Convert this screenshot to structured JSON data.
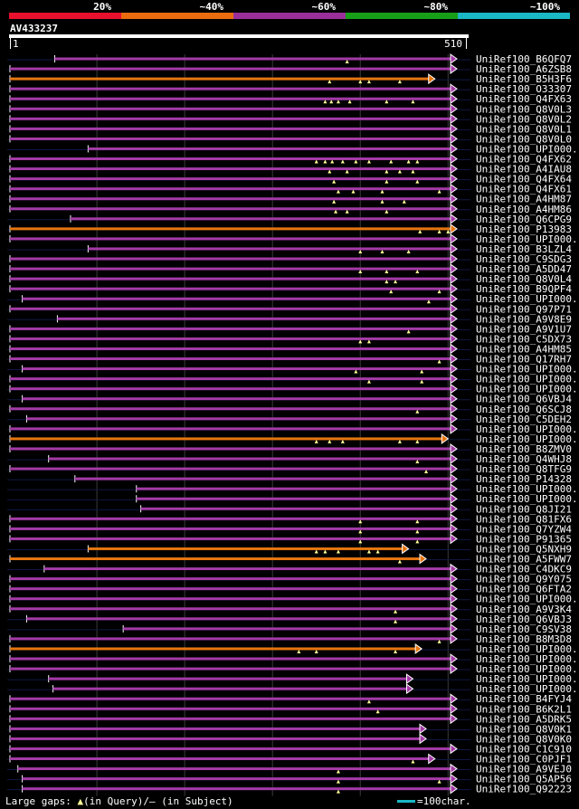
{
  "chart_data": {
    "type": "alignment-overview",
    "query_id": "AV433237",
    "query_range": [
      1,
      510
    ],
    "score_scale": {
      "labels": [
        "20%",
        "~40%",
        "~60%",
        "~80%",
        "~100%"
      ],
      "colors": [
        "#e8112d",
        "#ea6c0f",
        "#9a2f9a",
        "#17a017",
        "#1ab7c4"
      ]
    },
    "hit_colors": {
      "magenta": "#a33aa6",
      "orange": "#e5750f",
      "mark": "#ffff99"
    },
    "footer": {
      "gaps_label": "Large gaps: ",
      "gaps_query": "(in Query)",
      "gaps_subject": "/– (in Subject)",
      "scale_label": "=100char."
    },
    "hits": [
      {
        "name": "UniRef100_B6QFQ7",
        "color": "magenta",
        "start": 52,
        "end": 510,
        "gaps": [
          385
        ]
      },
      {
        "name": "UniRef100_A6ZSB8",
        "color": "magenta",
        "start": 1,
        "end": 510,
        "gaps": []
      },
      {
        "name": "UniRef100_B5H3F6",
        "color": "orange",
        "start": 1,
        "end": 485,
        "gaps": [
          365,
          400,
          410,
          445
        ]
      },
      {
        "name": "UniRef100_O33307",
        "color": "magenta",
        "start": 1,
        "end": 510,
        "gaps": []
      },
      {
        "name": "UniRef100_Q4FX63",
        "color": "magenta",
        "start": 1,
        "end": 510,
        "gaps": [
          360,
          367,
          375,
          388,
          430,
          460
        ]
      },
      {
        "name": "UniRef100_Q8V0L3",
        "color": "magenta",
        "start": 1,
        "end": 510,
        "gaps": []
      },
      {
        "name": "UniRef100_Q8V0L2",
        "color": "magenta",
        "start": 1,
        "end": 510,
        "gaps": []
      },
      {
        "name": "UniRef100_Q8V0L1",
        "color": "magenta",
        "start": 1,
        "end": 510,
        "gaps": []
      },
      {
        "name": "UniRef100_Q8V0L0",
        "color": "magenta",
        "start": 1,
        "end": 510,
        "gaps": []
      },
      {
        "name": "UniRef100_UPI000..",
        "color": "magenta",
        "start": 90,
        "end": 510,
        "gaps": []
      },
      {
        "name": "UniRef100_Q4FX62",
        "color": "magenta",
        "start": 1,
        "end": 510,
        "gaps": [
          350,
          360,
          368,
          380,
          395,
          410,
          435,
          455,
          465
        ]
      },
      {
        "name": "UniRef100_A4IAU8",
        "color": "magenta",
        "start": 1,
        "end": 510,
        "gaps": [
          365,
          385,
          430,
          445,
          460
        ]
      },
      {
        "name": "UniRef100_Q4FX64",
        "color": "magenta",
        "start": 1,
        "end": 510,
        "gaps": [
          370,
          430,
          465
        ]
      },
      {
        "name": "UniRef100_Q4FX61",
        "color": "magenta",
        "start": 1,
        "end": 510,
        "gaps": [
          375,
          392,
          425,
          490
        ]
      },
      {
        "name": "UniRef100_A4HM87",
        "color": "magenta",
        "start": 1,
        "end": 510,
        "gaps": [
          370,
          425,
          450
        ]
      },
      {
        "name": "UniRef100_A4HM86",
        "color": "magenta",
        "start": 1,
        "end": 510,
        "gaps": [
          372,
          385,
          430
        ]
      },
      {
        "name": "UniRef100_Q6CPG9",
        "color": "magenta",
        "start": 70,
        "end": 510,
        "gaps": []
      },
      {
        "name": "UniRef100_P13983",
        "color": "orange",
        "start": 1,
        "end": 510,
        "gaps": [
          468,
          490,
          500
        ]
      },
      {
        "name": "UniRef100_UPI000..",
        "color": "magenta",
        "start": 1,
        "end": 510,
        "gaps": []
      },
      {
        "name": "UniRef100_B3LZL4",
        "color": "magenta",
        "start": 90,
        "end": 510,
        "gaps": [
          400,
          425,
          455
        ]
      },
      {
        "name": "UniRef100_C9SDG3",
        "color": "magenta",
        "start": 1,
        "end": 510,
        "gaps": []
      },
      {
        "name": "UniRef100_A5DD47",
        "color": "magenta",
        "start": 1,
        "end": 510,
        "gaps": [
          400,
          430,
          465
        ]
      },
      {
        "name": "UniRef100_Q8V0L4",
        "color": "magenta",
        "start": 1,
        "end": 510,
        "gaps": [
          430,
          440
        ]
      },
      {
        "name": "UniRef100_B9QPF4",
        "color": "magenta",
        "start": 1,
        "end": 510,
        "gaps": [
          435,
          490
        ]
      },
      {
        "name": "UniRef100_UPI000..",
        "color": "magenta",
        "start": 15,
        "end": 510,
        "gaps": [
          478
        ]
      },
      {
        "name": "UniRef100_Q97P71",
        "color": "magenta",
        "start": 1,
        "end": 510,
        "gaps": []
      },
      {
        "name": "UniRef100_A9V8E9",
        "color": "magenta",
        "start": 55,
        "end": 510,
        "gaps": []
      },
      {
        "name": "UniRef100_A9V1U7",
        "color": "magenta",
        "start": 1,
        "end": 510,
        "gaps": [
          455
        ]
      },
      {
        "name": "UniRef100_C5DX73",
        "color": "magenta",
        "start": 1,
        "end": 510,
        "gaps": [
          400,
          410
        ]
      },
      {
        "name": "UniRef100_A4HM85",
        "color": "magenta",
        "start": 1,
        "end": 510,
        "gaps": []
      },
      {
        "name": "UniRef100_Q17RH7",
        "color": "magenta",
        "start": 1,
        "end": 510,
        "gaps": [
          490
        ]
      },
      {
        "name": "UniRef100_UPI000..",
        "color": "magenta",
        "start": 15,
        "end": 510,
        "gaps": [
          395,
          470
        ]
      },
      {
        "name": "UniRef100_UPI000..",
        "color": "magenta",
        "start": 1,
        "end": 510,
        "gaps": [
          410,
          470
        ]
      },
      {
        "name": "UniRef100_UPI000..",
        "color": "magenta",
        "start": 1,
        "end": 510,
        "gaps": []
      },
      {
        "name": "UniRef100_Q6VBJ4",
        "color": "magenta",
        "start": 15,
        "end": 510,
        "gaps": []
      },
      {
        "name": "UniRef100_Q6SCJ8",
        "color": "magenta",
        "start": 1,
        "end": 510,
        "gaps": [
          465
        ]
      },
      {
        "name": "UniRef100_C5DEH2",
        "color": "magenta",
        "start": 20,
        "end": 510,
        "gaps": []
      },
      {
        "name": "UniRef100_UPI000..",
        "color": "magenta",
        "start": 1,
        "end": 510,
        "gaps": []
      },
      {
        "name": "UniRef100_UPI000..",
        "color": "orange",
        "start": 1,
        "end": 500,
        "gaps": [
          350,
          365,
          380,
          445,
          465
        ]
      },
      {
        "name": "UniRef100_B8ZMV0",
        "color": "magenta",
        "start": 1,
        "end": 510,
        "gaps": []
      },
      {
        "name": "UniRef100_Q4WHJ8",
        "color": "magenta",
        "start": 45,
        "end": 510,
        "gaps": [
          465
        ]
      },
      {
        "name": "UniRef100_Q8TFG9",
        "color": "magenta",
        "start": 1,
        "end": 510,
        "gaps": [
          475
        ]
      },
      {
        "name": "UniRef100_P14328",
        "color": "magenta",
        "start": 75,
        "end": 510,
        "gaps": []
      },
      {
        "name": "UniRef100_UPI000..",
        "color": "magenta",
        "start": 145,
        "end": 510,
        "gaps": []
      },
      {
        "name": "UniRef100_UPI000..",
        "color": "magenta",
        "start": 145,
        "end": 510,
        "gaps": []
      },
      {
        "name": "UniRef100_Q8JI21",
        "color": "magenta",
        "start": 150,
        "end": 510,
        "gaps": []
      },
      {
        "name": "UniRef100_Q81FX6",
        "color": "magenta",
        "start": 1,
        "end": 510,
        "gaps": [
          400,
          465
        ]
      },
      {
        "name": "UniRef100_Q7YZW4",
        "color": "magenta",
        "start": 1,
        "end": 510,
        "gaps": [
          400,
          465
        ]
      },
      {
        "name": "UniRef100_P91365",
        "color": "magenta",
        "start": 1,
        "end": 510,
        "gaps": [
          400,
          465
        ]
      },
      {
        "name": "UniRef100_Q5NXH9",
        "color": "orange",
        "start": 90,
        "end": 455,
        "gaps": [
          350,
          360,
          375,
          410,
          420
        ]
      },
      {
        "name": "UniRef100_A5FWW7",
        "color": "orange",
        "start": 1,
        "end": 475,
        "gaps": [
          445
        ]
      },
      {
        "name": "UniRef100_C4DKC9",
        "color": "magenta",
        "start": 40,
        "end": 510,
        "gaps": []
      },
      {
        "name": "UniRef100_Q9Y075",
        "color": "magenta",
        "start": 1,
        "end": 510,
        "gaps": []
      },
      {
        "name": "UniRef100_Q6FTA2",
        "color": "magenta",
        "start": 1,
        "end": 510,
        "gaps": []
      },
      {
        "name": "UniRef100_UPI000..",
        "color": "magenta",
        "start": 1,
        "end": 510,
        "gaps": []
      },
      {
        "name": "UniRef100_A9V3K4",
        "color": "magenta",
        "start": 1,
        "end": 510,
        "gaps": [
          440
        ]
      },
      {
        "name": "UniRef100_Q6VBJ3",
        "color": "magenta",
        "start": 20,
        "end": 510,
        "gaps": [
          440
        ]
      },
      {
        "name": "UniRef100_C9SV38",
        "color": "magenta",
        "start": 130,
        "end": 510,
        "gaps": []
      },
      {
        "name": "UniRef100_B8M3D8",
        "color": "magenta",
        "start": 1,
        "end": 510,
        "gaps": [
          490
        ]
      },
      {
        "name": "UniRef100_UPI000..",
        "color": "orange",
        "start": 1,
        "end": 470,
        "gaps": [
          330,
          350,
          440
        ]
      },
      {
        "name": "UniRef100_UPI000..",
        "color": "magenta",
        "start": 1,
        "end": 510,
        "gaps": []
      },
      {
        "name": "UniRef100_UPI000..",
        "color": "magenta",
        "start": 1,
        "end": 510,
        "gaps": []
      },
      {
        "name": "UniRef100_UPI000..",
        "color": "magenta",
        "start": 45,
        "end": 460,
        "gaps": []
      },
      {
        "name": "UniRef100_UPI000..",
        "color": "magenta",
        "start": 50,
        "end": 460,
        "gaps": []
      },
      {
        "name": "UniRef100_B4FYJ4",
        "color": "magenta",
        "start": 1,
        "end": 510,
        "gaps": [
          410
        ]
      },
      {
        "name": "UniRef100_B6K2L1",
        "color": "magenta",
        "start": 1,
        "end": 510,
        "gaps": [
          420
        ]
      },
      {
        "name": "UniRef100_A5DRK5",
        "color": "magenta",
        "start": 1,
        "end": 510,
        "gaps": []
      },
      {
        "name": "UniRef100_Q8V0K1",
        "color": "magenta",
        "start": 1,
        "end": 475,
        "gaps": []
      },
      {
        "name": "UniRef100_Q8V0K0",
        "color": "magenta",
        "start": 1,
        "end": 475,
        "gaps": []
      },
      {
        "name": "UniRef100_C1C910",
        "color": "magenta",
        "start": 1,
        "end": 510,
        "gaps": []
      },
      {
        "name": "UniRef100_C0PJF1",
        "color": "magenta",
        "start": 1,
        "end": 485,
        "gaps": [
          460
        ]
      },
      {
        "name": "UniRef100_A9VEJ0",
        "color": "magenta",
        "start": 10,
        "end": 510,
        "gaps": [
          375
        ]
      },
      {
        "name": "UniRef100_Q5AP56",
        "color": "magenta",
        "start": 15,
        "end": 510,
        "gaps": [
          375,
          490
        ]
      },
      {
        "name": "UniRef100_Q92223",
        "color": "magenta",
        "start": 15,
        "end": 510,
        "gaps": [
          375
        ]
      }
    ]
  }
}
